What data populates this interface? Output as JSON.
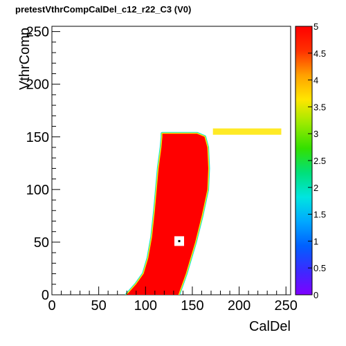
{
  "chart_data": {
    "type": "heatmap",
    "title": "pretestVthrCompCalDel_c12_r22_C3 (V0)",
    "xlabel": "CalDel",
    "ylabel": "VthrComp",
    "xlim": [
      0,
      255
    ],
    "ylim": [
      0,
      255
    ],
    "x_ticks": [
      0,
      50,
      100,
      150,
      200,
      250
    ],
    "y_ticks": [
      0,
      50,
      100,
      150,
      200,
      250
    ],
    "colorbar": {
      "range": [
        0,
        5
      ],
      "ticks": [
        0,
        0.5,
        1,
        1.5,
        2,
        2.5,
        3,
        3.5,
        4,
        4.5,
        5
      ],
      "palette": "rainbow",
      "colors": [
        "#7f00ff",
        "#3a2bff",
        "#0060ff",
        "#00a8ff",
        "#00e5e0",
        "#00e07a",
        "#33e000",
        "#99ea00",
        "#ffe600",
        "#ffa000",
        "#ff3000",
        "#ff0000"
      ]
    },
    "regions": [
      {
        "name": "efficient-band",
        "value": 5,
        "boundary_left": [
          [
            80,
            0
          ],
          [
            90,
            10
          ],
          [
            98,
            20
          ],
          [
            103,
            35
          ],
          [
            107,
            55
          ],
          [
            110,
            80
          ],
          [
            112,
            100
          ],
          [
            114,
            120
          ],
          [
            117,
            140
          ],
          [
            118,
            150
          ],
          [
            118,
            153
          ]
        ],
        "boundary_right": [
          [
            155,
            153
          ],
          [
            163,
            150
          ],
          [
            166,
            140
          ],
          [
            167,
            120
          ],
          [
            166,
            100
          ],
          [
            160,
            75
          ],
          [
            153,
            50
          ],
          [
            143,
            20
          ],
          [
            135,
            0
          ]
        ]
      },
      {
        "name": "plateau-tail",
        "value": 3.5,
        "x_range": [
          172,
          245
        ],
        "y_range": [
          152,
          158
        ]
      }
    ],
    "marker": {
      "x": 136,
      "y": 51,
      "value": 0
    }
  }
}
